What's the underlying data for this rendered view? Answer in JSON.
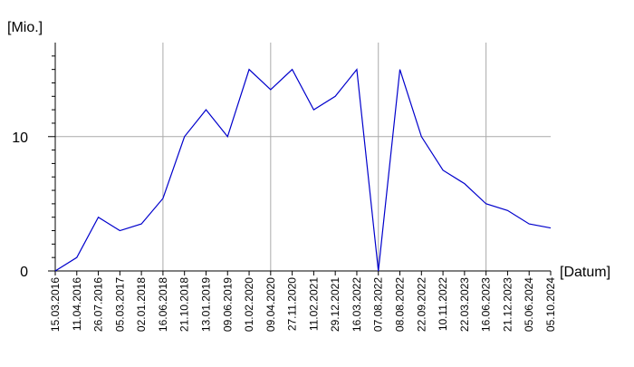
{
  "chart_data": {
    "type": "line",
    "y_label": "[Mio.]",
    "x_label": "[Datum]",
    "categories": [
      "15.03.2016",
      "11.04.2016",
      "26.07.2016",
      "05.03.2017",
      "02.01.2018",
      "16.06.2018",
      "21.10.2018",
      "13.01.2019",
      "09.06.2019",
      "01.02.2020",
      "09.04.2020",
      "27.11.2020",
      "11.02.2021",
      "29.12.2021",
      "16.03.2022",
      "07.08.2022",
      "08.08.2022",
      "22.09.2022",
      "10.11.2022",
      "22.03.2023",
      "16.06.2023",
      "21.12.2023",
      "05.06.2024",
      "05.10.2024"
    ],
    "series": [
      {
        "color": "#0000cc",
        "values": [
          0,
          1,
          4,
          3,
          3.5,
          5.4,
          10,
          12,
          10,
          15,
          13.5,
          15,
          12,
          13,
          15,
          0,
          15,
          10,
          7.5,
          6.5,
          5,
          4.5,
          3.5,
          3.2
        ]
      }
    ],
    "ylim": [
      0,
      17
    ],
    "yticks": [
      0,
      10
    ],
    "y_minor_ticks": [
      1,
      2,
      3,
      4,
      5,
      6,
      7,
      8,
      9,
      11,
      12,
      13,
      14,
      15,
      16
    ],
    "grid": true
  }
}
